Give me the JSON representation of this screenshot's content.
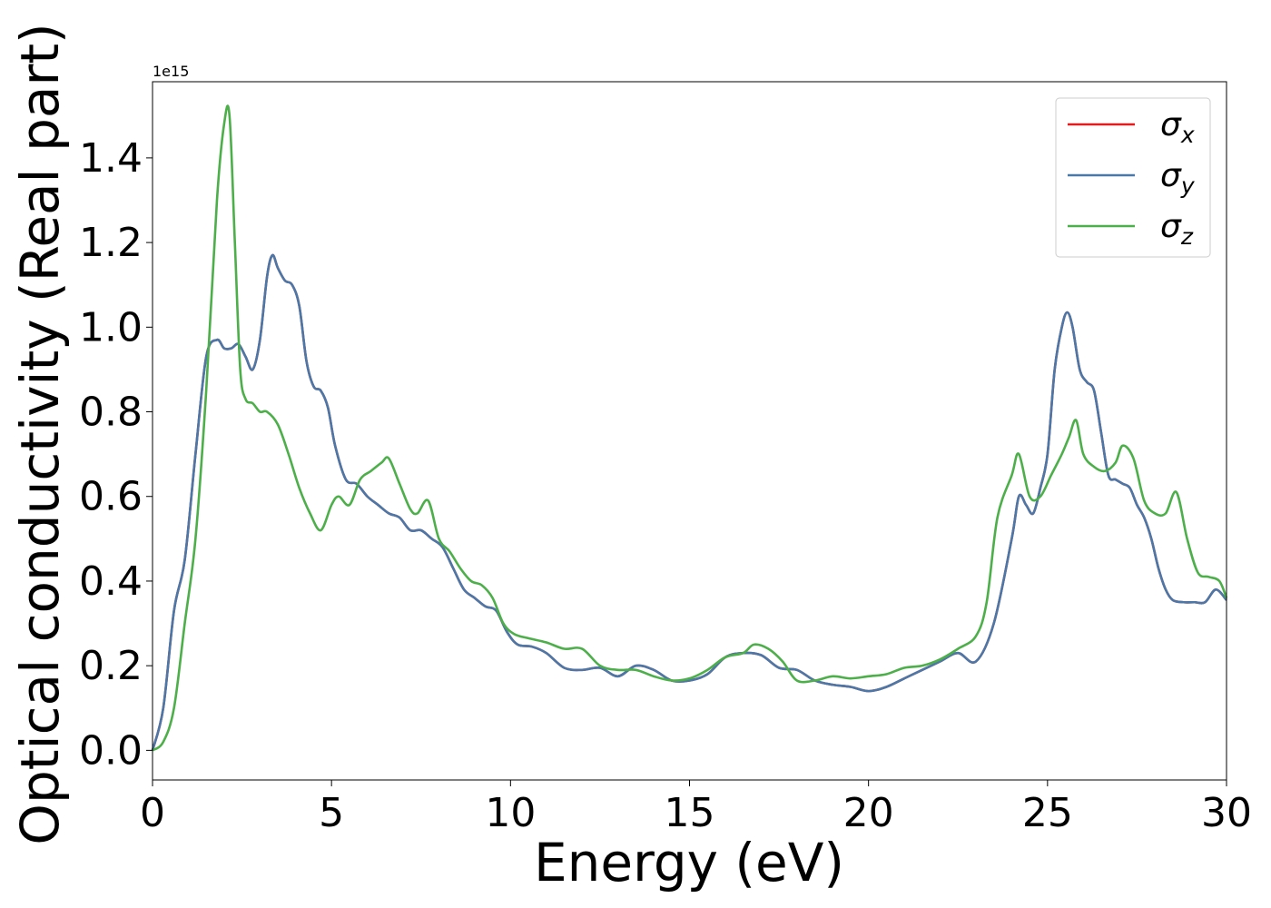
{
  "chart_data": {
    "type": "line",
    "title": "",
    "xlabel": "Energy (eV)",
    "ylabel": "Optical conductivity (Real part)",
    "offset_label": "1e15",
    "xlim": [
      0,
      30
    ],
    "ylim": [
      -0.07,
      1.58
    ],
    "x_ticks": [
      0,
      5,
      10,
      15,
      20,
      25,
      30
    ],
    "x_tick_labels": [
      "0",
      "5",
      "10",
      "15",
      "20",
      "25",
      "30"
    ],
    "y_ticks": [
      0.0,
      0.2,
      0.4,
      0.6,
      0.8,
      1.0,
      1.2,
      1.4
    ],
    "y_tick_labels": [
      "0.0",
      "0.2",
      "0.4",
      "0.6",
      "0.8",
      "1.0",
      "1.2",
      "1.4"
    ],
    "grid": false,
    "legend_position": "top-right",
    "series": [
      {
        "name": "σx",
        "legend_base": "σ",
        "legend_sub": "x",
        "color": "#e41a1c",
        "x": [
          0,
          0.3,
          0.6,
          0.9,
          1.2,
          1.5,
          1.8,
          2.0,
          2.2,
          2.4,
          2.6,
          2.8,
          3.0,
          3.2,
          3.35,
          3.5,
          3.7,
          3.9,
          4.1,
          4.3,
          4.5,
          4.7,
          4.9,
          5.1,
          5.4,
          5.7,
          6.0,
          6.3,
          6.6,
          6.9,
          7.2,
          7.5,
          7.8,
          8.1,
          8.4,
          8.7,
          9.0,
          9.3,
          9.6,
          9.9,
          10.2,
          10.6,
          11.0,
          11.5,
          12.0,
          12.5,
          13.0,
          13.5,
          14.0,
          14.5,
          15.0,
          15.5,
          16.0,
          16.5,
          17.0,
          17.5,
          18.0,
          18.5,
          19.0,
          19.5,
          20.0,
          20.5,
          21.0,
          21.5,
          22.0,
          22.5,
          23.0,
          23.5,
          24.0,
          24.2,
          24.4,
          24.6,
          24.8,
          25.0,
          25.2,
          25.4,
          25.55,
          25.7,
          25.9,
          26.1,
          26.3,
          26.5,
          26.7,
          26.9,
          27.1,
          27.3,
          27.5,
          27.7,
          27.9,
          28.1,
          28.3,
          28.5,
          28.8,
          29.1,
          29.4,
          29.7,
          30.0
        ],
        "y": [
          0.0,
          0.1,
          0.33,
          0.45,
          0.7,
          0.93,
          0.97,
          0.95,
          0.95,
          0.96,
          0.93,
          0.9,
          0.97,
          1.12,
          1.17,
          1.14,
          1.11,
          1.1,
          1.05,
          0.92,
          0.86,
          0.85,
          0.81,
          0.72,
          0.64,
          0.63,
          0.6,
          0.58,
          0.56,
          0.55,
          0.52,
          0.52,
          0.5,
          0.48,
          0.43,
          0.38,
          0.36,
          0.34,
          0.33,
          0.28,
          0.25,
          0.245,
          0.23,
          0.195,
          0.19,
          0.195,
          0.175,
          0.2,
          0.19,
          0.165,
          0.165,
          0.18,
          0.22,
          0.23,
          0.225,
          0.195,
          0.19,
          0.165,
          0.155,
          0.15,
          0.14,
          0.15,
          0.17,
          0.19,
          0.21,
          0.23,
          0.21,
          0.3,
          0.5,
          0.6,
          0.58,
          0.56,
          0.62,
          0.7,
          0.9,
          1.0,
          1.035,
          1.0,
          0.9,
          0.87,
          0.85,
          0.75,
          0.65,
          0.64,
          0.63,
          0.62,
          0.58,
          0.55,
          0.5,
          0.43,
          0.38,
          0.355,
          0.35,
          0.35,
          0.35,
          0.38,
          0.355
        ]
      },
      {
        "name": "σy",
        "legend_base": "σ",
        "legend_sub": "y",
        "color": "#4a78a8",
        "x": [
          0,
          0.3,
          0.6,
          0.9,
          1.2,
          1.5,
          1.8,
          2.0,
          2.2,
          2.4,
          2.6,
          2.8,
          3.0,
          3.2,
          3.35,
          3.5,
          3.7,
          3.9,
          4.1,
          4.3,
          4.5,
          4.7,
          4.9,
          5.1,
          5.4,
          5.7,
          6.0,
          6.3,
          6.6,
          6.9,
          7.2,
          7.5,
          7.8,
          8.1,
          8.4,
          8.7,
          9.0,
          9.3,
          9.6,
          9.9,
          10.2,
          10.6,
          11.0,
          11.5,
          12.0,
          12.5,
          13.0,
          13.5,
          14.0,
          14.5,
          15.0,
          15.5,
          16.0,
          16.5,
          17.0,
          17.5,
          18.0,
          18.5,
          19.0,
          19.5,
          20.0,
          20.5,
          21.0,
          21.5,
          22.0,
          22.5,
          23.0,
          23.5,
          24.0,
          24.2,
          24.4,
          24.6,
          24.8,
          25.0,
          25.2,
          25.4,
          25.55,
          25.7,
          25.9,
          26.1,
          26.3,
          26.5,
          26.7,
          26.9,
          27.1,
          27.3,
          27.5,
          27.7,
          27.9,
          28.1,
          28.3,
          28.5,
          28.8,
          29.1,
          29.4,
          29.7,
          30.0
        ],
        "y": [
          0.0,
          0.1,
          0.33,
          0.45,
          0.7,
          0.93,
          0.97,
          0.95,
          0.95,
          0.96,
          0.93,
          0.9,
          0.97,
          1.12,
          1.17,
          1.14,
          1.11,
          1.1,
          1.05,
          0.92,
          0.86,
          0.85,
          0.81,
          0.72,
          0.64,
          0.63,
          0.6,
          0.58,
          0.56,
          0.55,
          0.52,
          0.52,
          0.5,
          0.48,
          0.43,
          0.38,
          0.36,
          0.34,
          0.33,
          0.28,
          0.25,
          0.245,
          0.23,
          0.195,
          0.19,
          0.195,
          0.175,
          0.2,
          0.19,
          0.165,
          0.165,
          0.18,
          0.22,
          0.23,
          0.225,
          0.195,
          0.19,
          0.165,
          0.155,
          0.15,
          0.14,
          0.15,
          0.17,
          0.19,
          0.21,
          0.23,
          0.21,
          0.3,
          0.5,
          0.6,
          0.58,
          0.56,
          0.62,
          0.7,
          0.9,
          1.0,
          1.035,
          1.0,
          0.9,
          0.87,
          0.85,
          0.75,
          0.65,
          0.64,
          0.63,
          0.62,
          0.58,
          0.55,
          0.5,
          0.43,
          0.38,
          0.355,
          0.35,
          0.35,
          0.35,
          0.38,
          0.355
        ]
      },
      {
        "name": "σz",
        "legend_base": "σ",
        "legend_sub": "z",
        "color": "#4daf4a",
        "x": [
          0,
          0.3,
          0.6,
          0.9,
          1.2,
          1.5,
          1.8,
          2.0,
          2.15,
          2.3,
          2.45,
          2.6,
          2.8,
          3.0,
          3.2,
          3.5,
          3.8,
          4.1,
          4.4,
          4.7,
          5.0,
          5.2,
          5.5,
          5.8,
          6.1,
          6.4,
          6.6,
          6.9,
          7.2,
          7.4,
          7.7,
          8.0,
          8.3,
          8.6,
          8.9,
          9.2,
          9.5,
          9.8,
          10.1,
          10.5,
          11.0,
          11.5,
          12.0,
          12.5,
          13.0,
          13.5,
          14.0,
          14.5,
          15.0,
          15.5,
          16.0,
          16.5,
          16.8,
          17.2,
          17.6,
          18.0,
          18.5,
          19.0,
          19.5,
          20.0,
          20.5,
          21.0,
          21.5,
          22.0,
          22.5,
          23.0,
          23.3,
          23.6,
          24.0,
          24.2,
          24.5,
          24.8,
          25.1,
          25.4,
          25.6,
          25.8,
          26.0,
          26.3,
          26.6,
          26.9,
          27.1,
          27.4,
          27.7,
          28.0,
          28.3,
          28.6,
          28.9,
          29.2,
          29.5,
          29.8,
          30.0
        ],
        "y": [
          0.0,
          0.02,
          0.1,
          0.3,
          0.5,
          0.85,
          1.3,
          1.48,
          1.5,
          1.2,
          0.9,
          0.83,
          0.82,
          0.8,
          0.8,
          0.77,
          0.7,
          0.62,
          0.56,
          0.52,
          0.58,
          0.6,
          0.58,
          0.64,
          0.66,
          0.68,
          0.69,
          0.63,
          0.57,
          0.56,
          0.59,
          0.5,
          0.47,
          0.43,
          0.4,
          0.39,
          0.36,
          0.3,
          0.275,
          0.265,
          0.255,
          0.24,
          0.24,
          0.2,
          0.19,
          0.19,
          0.175,
          0.165,
          0.17,
          0.19,
          0.22,
          0.23,
          0.25,
          0.24,
          0.21,
          0.165,
          0.165,
          0.175,
          0.17,
          0.175,
          0.18,
          0.195,
          0.2,
          0.215,
          0.24,
          0.27,
          0.35,
          0.55,
          0.65,
          0.7,
          0.6,
          0.6,
          0.65,
          0.7,
          0.74,
          0.78,
          0.7,
          0.67,
          0.66,
          0.68,
          0.72,
          0.69,
          0.59,
          0.56,
          0.56,
          0.61,
          0.5,
          0.42,
          0.41,
          0.4,
          0.36
        ]
      }
    ]
  }
}
